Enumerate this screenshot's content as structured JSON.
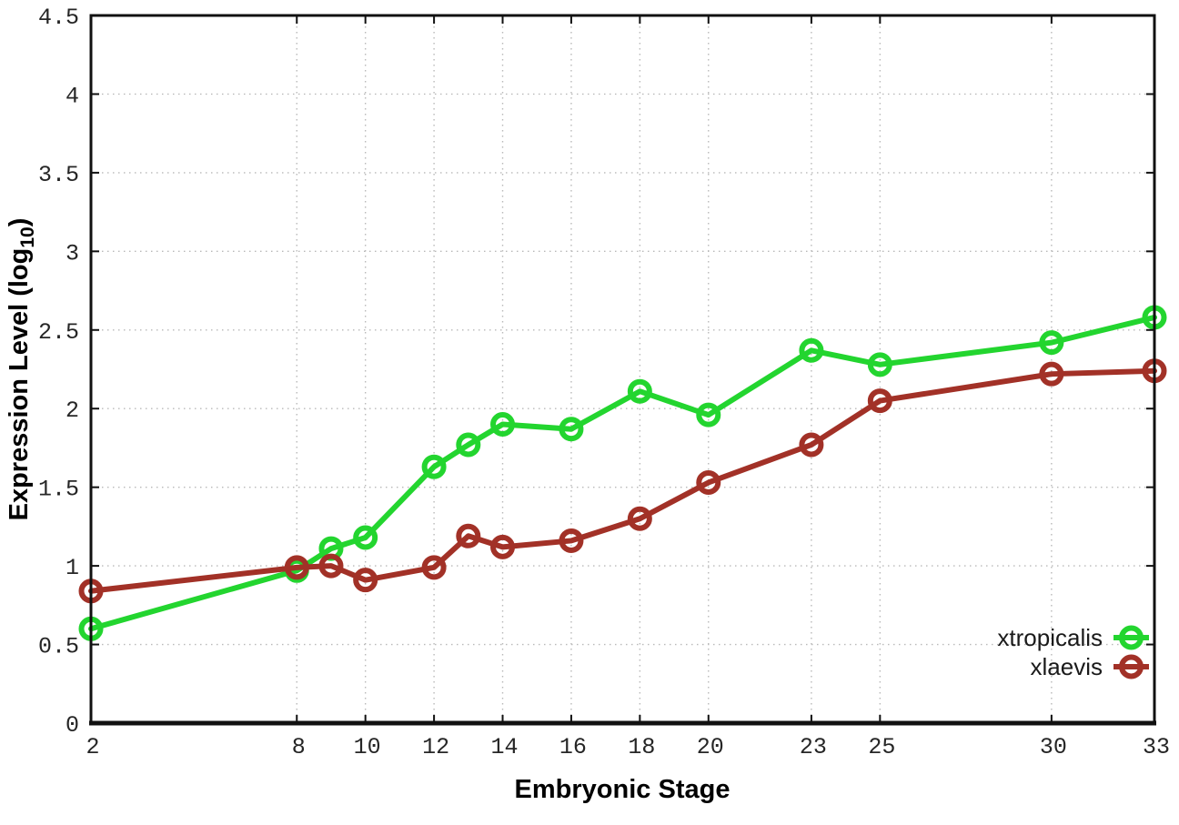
{
  "figure": {
    "background": "#ffffff"
  },
  "chart_data": {
    "type": "line",
    "title": "",
    "xlabel": "Embryonic Stage",
    "ylabel_prefix": "Expression Level (log",
    "ylabel_sub": "10",
    "ylabel_suffix": ")",
    "xlim": [
      2,
      33
    ],
    "ylim": [
      0,
      4.5
    ],
    "x_ticks": [
      2,
      8,
      10,
      12,
      14,
      16,
      18,
      20,
      23,
      25,
      30,
      33
    ],
    "y_ticks": [
      0,
      0.5,
      1,
      1.5,
      2,
      2.5,
      3,
      3.5,
      4,
      4.5
    ],
    "grid": true,
    "legend_position": "bottom-right",
    "x": [
      2,
      8,
      9,
      10,
      12,
      13,
      14,
      16,
      18,
      20,
      23,
      25,
      30,
      33
    ],
    "series": [
      {
        "name": "xtropicalis",
        "color": "#23d52f",
        "values": [
          0.6,
          0.97,
          1.11,
          1.18,
          1.63,
          1.77,
          1.9,
          1.87,
          2.11,
          1.96,
          2.37,
          2.28,
          2.42,
          2.58
        ]
      },
      {
        "name": "xlaevis",
        "color": "#a23127",
        "values": [
          0.84,
          0.99,
          1.0,
          0.91,
          0.99,
          1.19,
          1.12,
          1.16,
          1.3,
          1.53,
          1.77,
          2.05,
          2.22,
          2.24
        ]
      }
    ],
    "colors": {
      "axis": "#111111",
      "grid": "#b9b9b9",
      "text": "#262626"
    }
  }
}
